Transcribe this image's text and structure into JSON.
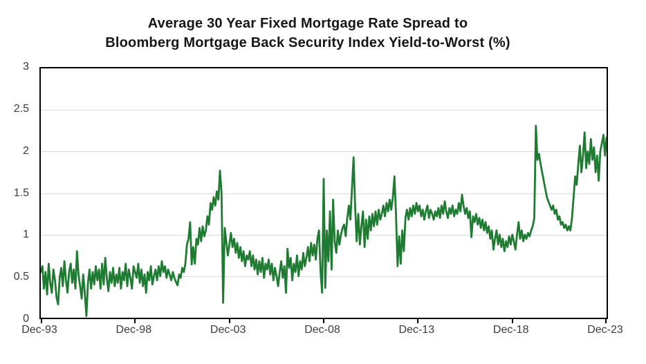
{
  "header": {
    "title_line1": "Average 30 Year Fixed Mortgage Rate Spread to",
    "title_line2": "Bloomberg Mortgage Back Security Index Yield-to-Worst (%)"
  },
  "chart_data": {
    "type": "line",
    "title": "Average 30 Year Fixed Mortgage Rate Spread to Bloomberg Mortgage Back Security Index Yield-to-Worst (%)",
    "xlabel": "",
    "ylabel": "",
    "ylim": [
      0,
      3
    ],
    "grid": "horizontal",
    "legend_position": "none",
    "frequency": "monthly",
    "x_start": "Dec-93",
    "x_end": "Dec-23",
    "x_tick_labels": [
      "Dec-93",
      "Dec-98",
      "Dec-03",
      "Dec-08",
      "Dec-13",
      "Dec-18",
      "Dec-23"
    ],
    "y_tick_labels": [
      "0",
      "0.5",
      "1",
      "1.5",
      "2",
      "2.5",
      "3"
    ],
    "y_tick_values": [
      0,
      0.5,
      1,
      1.5,
      2,
      2.5,
      3
    ],
    "line_color": "#1E7B31",
    "grid_color": "#D9D9D9",
    "axis_color": "#000000",
    "values": [
      0.55,
      0.62,
      0.35,
      0.55,
      0.28,
      0.65,
      0.42,
      0.3,
      0.58,
      0.45,
      0.25,
      0.16,
      0.48,
      0.6,
      0.38,
      0.68,
      0.45,
      0.3,
      0.55,
      0.65,
      0.42,
      0.58,
      0.35,
      0.8,
      0.52,
      0.38,
      0.23,
      0.52,
      0.3,
      0.02,
      0.42,
      0.58,
      0.35,
      0.55,
      0.4,
      0.62,
      0.45,
      0.58,
      0.35,
      0.65,
      0.4,
      0.72,
      0.48,
      0.32,
      0.55,
      0.42,
      0.6,
      0.38,
      0.52,
      0.42,
      0.6,
      0.35,
      0.55,
      0.45,
      0.65,
      0.38,
      0.58,
      0.48,
      0.35,
      0.62,
      0.55,
      0.48,
      0.65,
      0.42,
      0.58,
      0.38,
      0.52,
      0.3,
      0.55,
      0.45,
      0.62,
      0.4,
      0.5,
      0.58,
      0.45,
      0.62,
      0.5,
      0.68,
      0.55,
      0.62,
      0.48,
      0.58,
      0.52,
      0.45,
      0.55,
      0.48,
      0.43,
      0.39,
      0.52,
      0.48,
      0.6,
      0.55,
      0.65,
      0.88,
      0.95,
      1.15,
      0.64,
      0.85,
      0.65,
      0.95,
      0.88,
      1.08,
      0.92,
      1.1,
      0.98,
      1.05,
      1.22,
      1.12,
      1.38,
      1.3,
      1.45,
      1.35,
      1.52,
      1.42,
      1.77,
      1.5,
      0.18,
      1.08,
      0.92,
      0.75,
      0.88,
      1.02,
      0.85,
      0.95,
      0.78,
      0.9,
      0.72,
      0.85,
      0.68,
      0.8,
      0.62,
      0.75,
      0.7,
      0.8,
      0.62,
      0.75,
      0.58,
      0.7,
      0.52,
      0.68,
      0.55,
      0.72,
      0.48,
      0.65,
      0.58,
      0.7,
      0.52,
      0.65,
      0.45,
      0.6,
      0.5,
      0.38,
      0.55,
      0.68,
      0.48,
      0.62,
      0.3,
      0.83,
      0.6,
      0.72,
      0.45,
      0.65,
      0.55,
      0.75,
      0.5,
      0.68,
      0.58,
      0.78,
      0.62,
      0.72,
      0.85,
      0.68,
      0.9,
      0.75,
      0.88,
      0.7,
      0.95,
      1.05,
      0.55,
      0.3,
      1.67,
      0.36,
      1.05,
      0.68,
      1.28,
      0.58,
      1.42,
      0.92,
      0.78,
      1.05,
      0.88,
      1.0,
      1.08,
      1.12,
      0.98,
      1.2,
      1.35,
      1.18,
      1.55,
      1.93,
      1.35,
      0.92,
      1.25,
      0.88,
      1.1,
      1.28,
      0.85,
      1.18,
      0.95,
      1.22,
      1.05,
      1.25,
      1.1,
      1.28,
      1.12,
      1.3,
      1.18,
      1.25,
      1.35,
      1.22,
      1.38,
      1.28,
      1.42,
      1.3,
      1.45,
      1.7,
      1.25,
      0.62,
      0.98,
      0.65,
      1.05,
      0.8,
      1.2,
      1.3,
      1.18,
      1.32,
      1.22,
      1.35,
      1.25,
      1.38,
      1.28,
      1.35,
      1.22,
      1.3,
      1.18,
      1.28,
      1.35,
      1.2,
      1.3,
      1.25,
      1.18,
      1.28,
      1.22,
      1.32,
      1.2,
      1.35,
      1.25,
      1.4,
      1.28,
      1.2,
      1.32,
      1.25,
      1.35,
      1.22,
      1.3,
      1.25,
      1.38,
      1.28,
      1.48,
      1.35,
      1.25,
      1.32,
      1.2,
      1.28,
      0.97,
      1.22,
      1.15,
      1.25,
      1.12,
      1.2,
      1.08,
      1.18,
      1.05,
      1.15,
      1.02,
      1.1,
      0.95,
      1.05,
      0.82,
      0.95,
      1.05,
      0.88,
      1.0,
      0.85,
      0.95,
      0.8,
      0.92,
      0.85,
      0.98,
      0.88,
      1.0,
      0.92,
      0.82,
      1.0,
      1.15,
      0.95,
      1.05,
      0.92,
      1.0,
      0.95,
      1.02,
      0.98,
      1.05,
      1.1,
      1.2,
      2.31,
      1.9,
      1.97,
      1.85,
      1.75,
      1.65,
      1.55,
      1.45,
      1.4,
      1.35,
      1.3,
      1.35,
      1.25,
      1.3,
      1.18,
      1.22,
      1.12,
      1.15,
      1.08,
      1.12,
      1.05,
      1.1,
      1.05,
      1.2,
      1.45,
      1.7,
      1.6,
      1.85,
      2.07,
      1.75,
      1.95,
      2.23,
      1.8,
      2.0,
      1.85,
      2.15,
      1.9,
      2.05,
      1.75,
      1.95,
      1.65,
      2.0,
      2.1,
      2.2,
      1.95,
      2.17
    ]
  }
}
